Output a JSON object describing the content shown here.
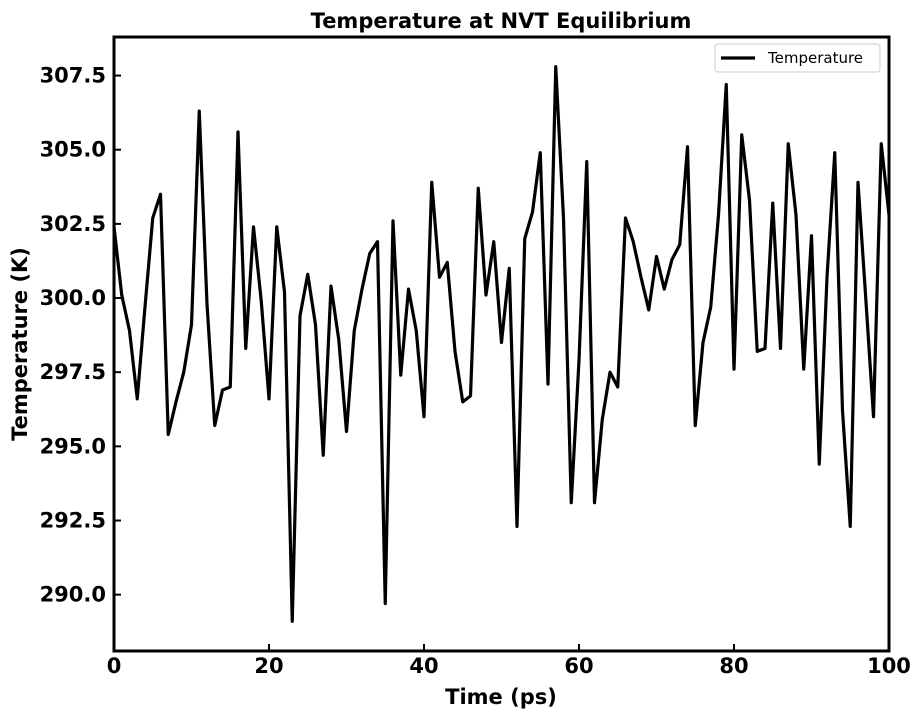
{
  "chart_data": {
    "type": "line",
    "title": "Temperature at NVT Equilibrium",
    "xlabel": "Time (ps)",
    "ylabel": "Temperature (K)",
    "xlim": [
      0,
      100
    ],
    "ylim": [
      288.1,
      308.8
    ],
    "xticks": [
      0,
      20,
      40,
      60,
      80,
      100
    ],
    "yticks": [
      290.0,
      292.5,
      295.0,
      297.5,
      300.0,
      302.5,
      305.0,
      307.5
    ],
    "grid": false,
    "legend_position": "top-right",
    "series": [
      {
        "name": "Temperature",
        "color": "#000000",
        "x": [
          0,
          1,
          2,
          3,
          4,
          5,
          6,
          7,
          8,
          9,
          10,
          11,
          12,
          13,
          14,
          15,
          16,
          17,
          18,
          19,
          20,
          21,
          22,
          23,
          24,
          25,
          26,
          27,
          28,
          29,
          30,
          31,
          32,
          33,
          34,
          35,
          36,
          37,
          38,
          39,
          40,
          41,
          42,
          43,
          44,
          45,
          46,
          47,
          48,
          49,
          50,
          51,
          52,
          53,
          54,
          55,
          56,
          57,
          58,
          59,
          60,
          61,
          62,
          63,
          64,
          65,
          66,
          67,
          68,
          69,
          70,
          71,
          72,
          73,
          74,
          75,
          76,
          77,
          78,
          79,
          80,
          81,
          82,
          83,
          84,
          85,
          86,
          87,
          88,
          89,
          90,
          91,
          92,
          93,
          94,
          95,
          96,
          97,
          98,
          99,
          100
        ],
        "values": [
          302.4,
          300.1,
          298.9,
          296.6,
          299.7,
          302.7,
          303.5,
          295.4,
          296.5,
          297.5,
          299.1,
          306.3,
          299.8,
          295.7,
          296.9,
          297.0,
          305.6,
          298.3,
          302.4,
          299.9,
          296.6,
          302.4,
          300.2,
          289.1,
          299.4,
          300.8,
          299.1,
          294.7,
          300.4,
          298.6,
          295.5,
          298.9,
          300.3,
          301.5,
          301.9,
          289.7,
          302.6,
          297.4,
          300.3,
          298.9,
          296.0,
          303.9,
          300.7,
          301.2,
          298.2,
          296.5,
          296.7,
          303.7,
          300.1,
          301.9,
          298.5,
          301.0,
          292.3,
          302.0,
          302.9,
          304.9,
          297.1,
          307.8,
          302.7,
          293.1,
          297.9,
          304.6,
          293.1,
          295.9,
          297.5,
          297.0,
          302.7,
          301.9,
          300.7,
          299.6,
          301.4,
          300.3,
          301.3,
          301.8,
          305.1,
          295.7,
          298.5,
          299.7,
          302.8,
          307.2,
          297.6,
          305.5,
          303.3,
          298.2,
          298.3,
          303.2,
          298.3,
          305.2,
          302.8,
          297.6,
          302.1,
          294.4,
          300.7,
          304.9,
          296.2,
          292.3,
          303.9,
          300.0,
          296.0,
          305.2,
          302.8
        ]
      }
    ]
  }
}
